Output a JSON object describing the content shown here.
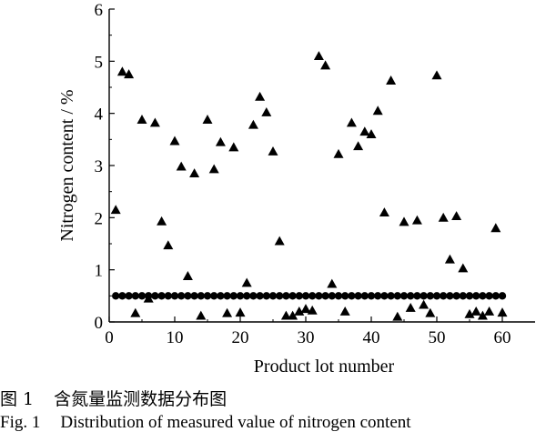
{
  "chart_data": {
    "type": "scatter",
    "xlabel": "Product lot number",
    "ylabel": "Nitrogen content / %",
    "xlim": [
      0,
      65
    ],
    "ylim": [
      0,
      6
    ],
    "xticks": [
      0,
      10,
      20,
      30,
      40,
      50,
      60
    ],
    "yticks": [
      0,
      1,
      2,
      3,
      4,
      5,
      6
    ],
    "grid": false,
    "legend": "none",
    "series": [
      {
        "marker": "circle",
        "x": [
          1,
          2,
          3,
          4,
          5,
          6,
          7,
          8,
          9,
          10,
          11,
          12,
          13,
          14,
          15,
          16,
          17,
          18,
          19,
          20,
          21,
          22,
          23,
          24,
          25,
          26,
          27,
          28,
          29,
          30,
          31,
          32,
          33,
          34,
          35,
          36,
          37,
          38,
          39,
          40,
          41,
          42,
          43,
          44,
          45,
          46,
          47,
          48,
          49,
          50,
          51,
          52,
          53,
          54,
          55,
          56,
          57,
          58,
          59,
          60
        ],
        "y": [
          0.5,
          0.5,
          0.5,
          0.5,
          0.5,
          0.5,
          0.5,
          0.5,
          0.5,
          0.5,
          0.5,
          0.5,
          0.5,
          0.5,
          0.5,
          0.5,
          0.5,
          0.5,
          0.5,
          0.5,
          0.5,
          0.5,
          0.5,
          0.5,
          0.5,
          0.5,
          0.5,
          0.5,
          0.5,
          0.5,
          0.5,
          0.5,
          0.5,
          0.5,
          0.5,
          0.5,
          0.5,
          0.5,
          0.5,
          0.5,
          0.5,
          0.5,
          0.5,
          0.5,
          0.5,
          0.5,
          0.5,
          0.5,
          0.5,
          0.5,
          0.5,
          0.5,
          0.5,
          0.5,
          0.5,
          0.5,
          0.5,
          0.5,
          0.5,
          0.5
        ]
      },
      {
        "marker": "triangle",
        "x": [
          1,
          2,
          3,
          4,
          5,
          6,
          7,
          8,
          9,
          10,
          11,
          12,
          13,
          14,
          15,
          16,
          17,
          18,
          19,
          20,
          21,
          22,
          23,
          24,
          25,
          26,
          27,
          28,
          29,
          30,
          31,
          32,
          33,
          34,
          35,
          36,
          37,
          38,
          39,
          40,
          41,
          42,
          43,
          44,
          45,
          46,
          47,
          48,
          49,
          50,
          51,
          52,
          53,
          54,
          55,
          56,
          57,
          58,
          59,
          60
        ],
        "y": [
          2.15,
          4.8,
          4.75,
          0.17,
          3.88,
          0.45,
          3.82,
          1.93,
          1.47,
          3.47,
          2.98,
          0.88,
          2.85,
          0.12,
          3.88,
          2.93,
          3.45,
          0.17,
          3.35,
          0.18,
          0.75,
          3.78,
          4.32,
          4.02,
          3.27,
          1.55,
          0.12,
          0.12,
          0.2,
          0.25,
          0.22,
          5.1,
          4.92,
          0.73,
          3.22,
          0.2,
          3.82,
          3.37,
          3.65,
          3.6,
          4.05,
          2.1,
          4.63,
          0.1,
          1.92,
          0.27,
          1.95,
          0.33,
          0.17,
          4.73,
          2.0,
          1.2,
          2.03,
          1.03,
          0.15,
          0.2,
          0.12,
          0.2,
          1.8,
          0.18
        ]
      }
    ]
  },
  "caption_cn": {
    "label": "图 1",
    "text": "含氮量监测数据分布图"
  },
  "caption_en": {
    "label": "Fig. 1",
    "text": "Distribution of measured value of nitrogen content"
  }
}
